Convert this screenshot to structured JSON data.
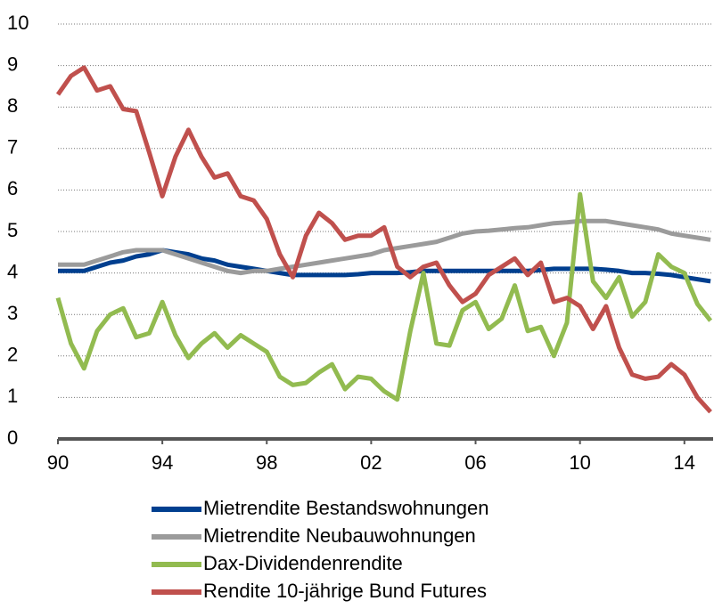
{
  "chart_data": {
    "type": "line",
    "x": [
      1990,
      1990.5,
      1991,
      1991.5,
      1992,
      1992.5,
      1993,
      1993.5,
      1994,
      1994.5,
      1995,
      1995.5,
      1996,
      1996.5,
      1997,
      1997.5,
      1998,
      1998.5,
      1999,
      1999.5,
      2000,
      2000.5,
      2001,
      2001.5,
      2002,
      2002.5,
      2003,
      2003.5,
      2004,
      2004.5,
      2005,
      2005.5,
      2006,
      2006.5,
      2007,
      2007.5,
      2008,
      2008.5,
      2009,
      2009.5,
      2010,
      2010.5,
      2011,
      2011.5,
      2012,
      2012.5,
      2013,
      2013.5,
      2014,
      2014.5,
      2015
    ],
    "series": [
      {
        "name": "Mietrendite Bestandswohnungen",
        "color": "#003f8f",
        "values": [
          4.05,
          4.05,
          4.05,
          4.15,
          4.25,
          4.3,
          4.4,
          4.45,
          4.55,
          4.5,
          4.45,
          4.35,
          4.3,
          4.2,
          4.15,
          4.1,
          4.05,
          4.0,
          3.95,
          3.95,
          3.95,
          3.95,
          3.95,
          3.97,
          4.0,
          4.0,
          4.0,
          4.02,
          4.05,
          4.05,
          4.05,
          4.05,
          4.05,
          4.05,
          4.05,
          4.05,
          4.05,
          4.07,
          4.1,
          4.1,
          4.1,
          4.1,
          4.08,
          4.05,
          4.0,
          4.0,
          3.98,
          3.95,
          3.9,
          3.85,
          3.8
        ]
      },
      {
        "name": "Mietrendite Neubauwohnungen",
        "color": "#9b9b9b",
        "values": [
          4.2,
          4.2,
          4.2,
          4.3,
          4.4,
          4.5,
          4.55,
          4.55,
          4.55,
          4.45,
          4.35,
          4.25,
          4.15,
          4.05,
          4.0,
          4.05,
          4.05,
          4.1,
          4.15,
          4.2,
          4.25,
          4.3,
          4.35,
          4.4,
          4.45,
          4.55,
          4.6,
          4.65,
          4.7,
          4.75,
          4.85,
          4.95,
          5.0,
          5.02,
          5.05,
          5.08,
          5.1,
          5.15,
          5.2,
          5.22,
          5.25,
          5.25,
          5.25,
          5.2,
          5.15,
          5.1,
          5.05,
          4.95,
          4.9,
          4.85,
          4.8
        ]
      },
      {
        "name": "Dax-Dividendenrendite",
        "color": "#92bb50",
        "values": [
          3.4,
          2.3,
          1.7,
          2.6,
          3.0,
          3.15,
          2.45,
          2.55,
          3.3,
          2.5,
          1.95,
          2.3,
          2.55,
          2.2,
          2.5,
          2.3,
          2.1,
          1.5,
          1.3,
          1.35,
          1.6,
          1.8,
          1.2,
          1.5,
          1.45,
          1.15,
          0.95,
          2.6,
          4.0,
          2.3,
          2.25,
          3.1,
          3.3,
          2.65,
          2.9,
          3.7,
          2.6,
          2.7,
          2.0,
          2.8,
          5.9,
          3.8,
          3.4,
          3.9,
          2.95,
          3.3,
          4.45,
          4.15,
          4.0,
          3.25,
          2.85
        ]
      },
      {
        "name": "Rendite 10-jährige Bund Futures",
        "color": "#c0504d",
        "values": [
          8.3,
          8.75,
          8.95,
          8.4,
          8.5,
          7.95,
          7.9,
          6.9,
          5.85,
          6.8,
          7.45,
          6.8,
          6.3,
          6.4,
          5.85,
          5.75,
          5.3,
          4.45,
          3.9,
          4.9,
          5.45,
          5.2,
          4.8,
          4.9,
          4.9,
          5.1,
          4.15,
          3.9,
          4.15,
          4.25,
          3.7,
          3.3,
          3.5,
          3.95,
          4.15,
          4.35,
          3.95,
          4.25,
          3.3,
          3.4,
          3.2,
          2.65,
          3.2,
          2.2,
          1.55,
          1.45,
          1.5,
          1.8,
          1.55,
          1.0,
          0.65
        ]
      }
    ],
    "xlim": [
      1990,
      2015.1
    ],
    "xticks": [
      {
        "value": 1990,
        "label": "90"
      },
      {
        "value": 1994,
        "label": "94"
      },
      {
        "value": 1998,
        "label": "98"
      },
      {
        "value": 2002,
        "label": "02"
      },
      {
        "value": 2006,
        "label": "06"
      },
      {
        "value": 2010,
        "label": "10"
      },
      {
        "value": 2014,
        "label": "14"
      }
    ],
    "ylim": [
      0,
      10
    ],
    "yticks": [
      0,
      1,
      2,
      3,
      4,
      5,
      6,
      7,
      8,
      9,
      10
    ],
    "grid": true,
    "legend": "bottom"
  }
}
